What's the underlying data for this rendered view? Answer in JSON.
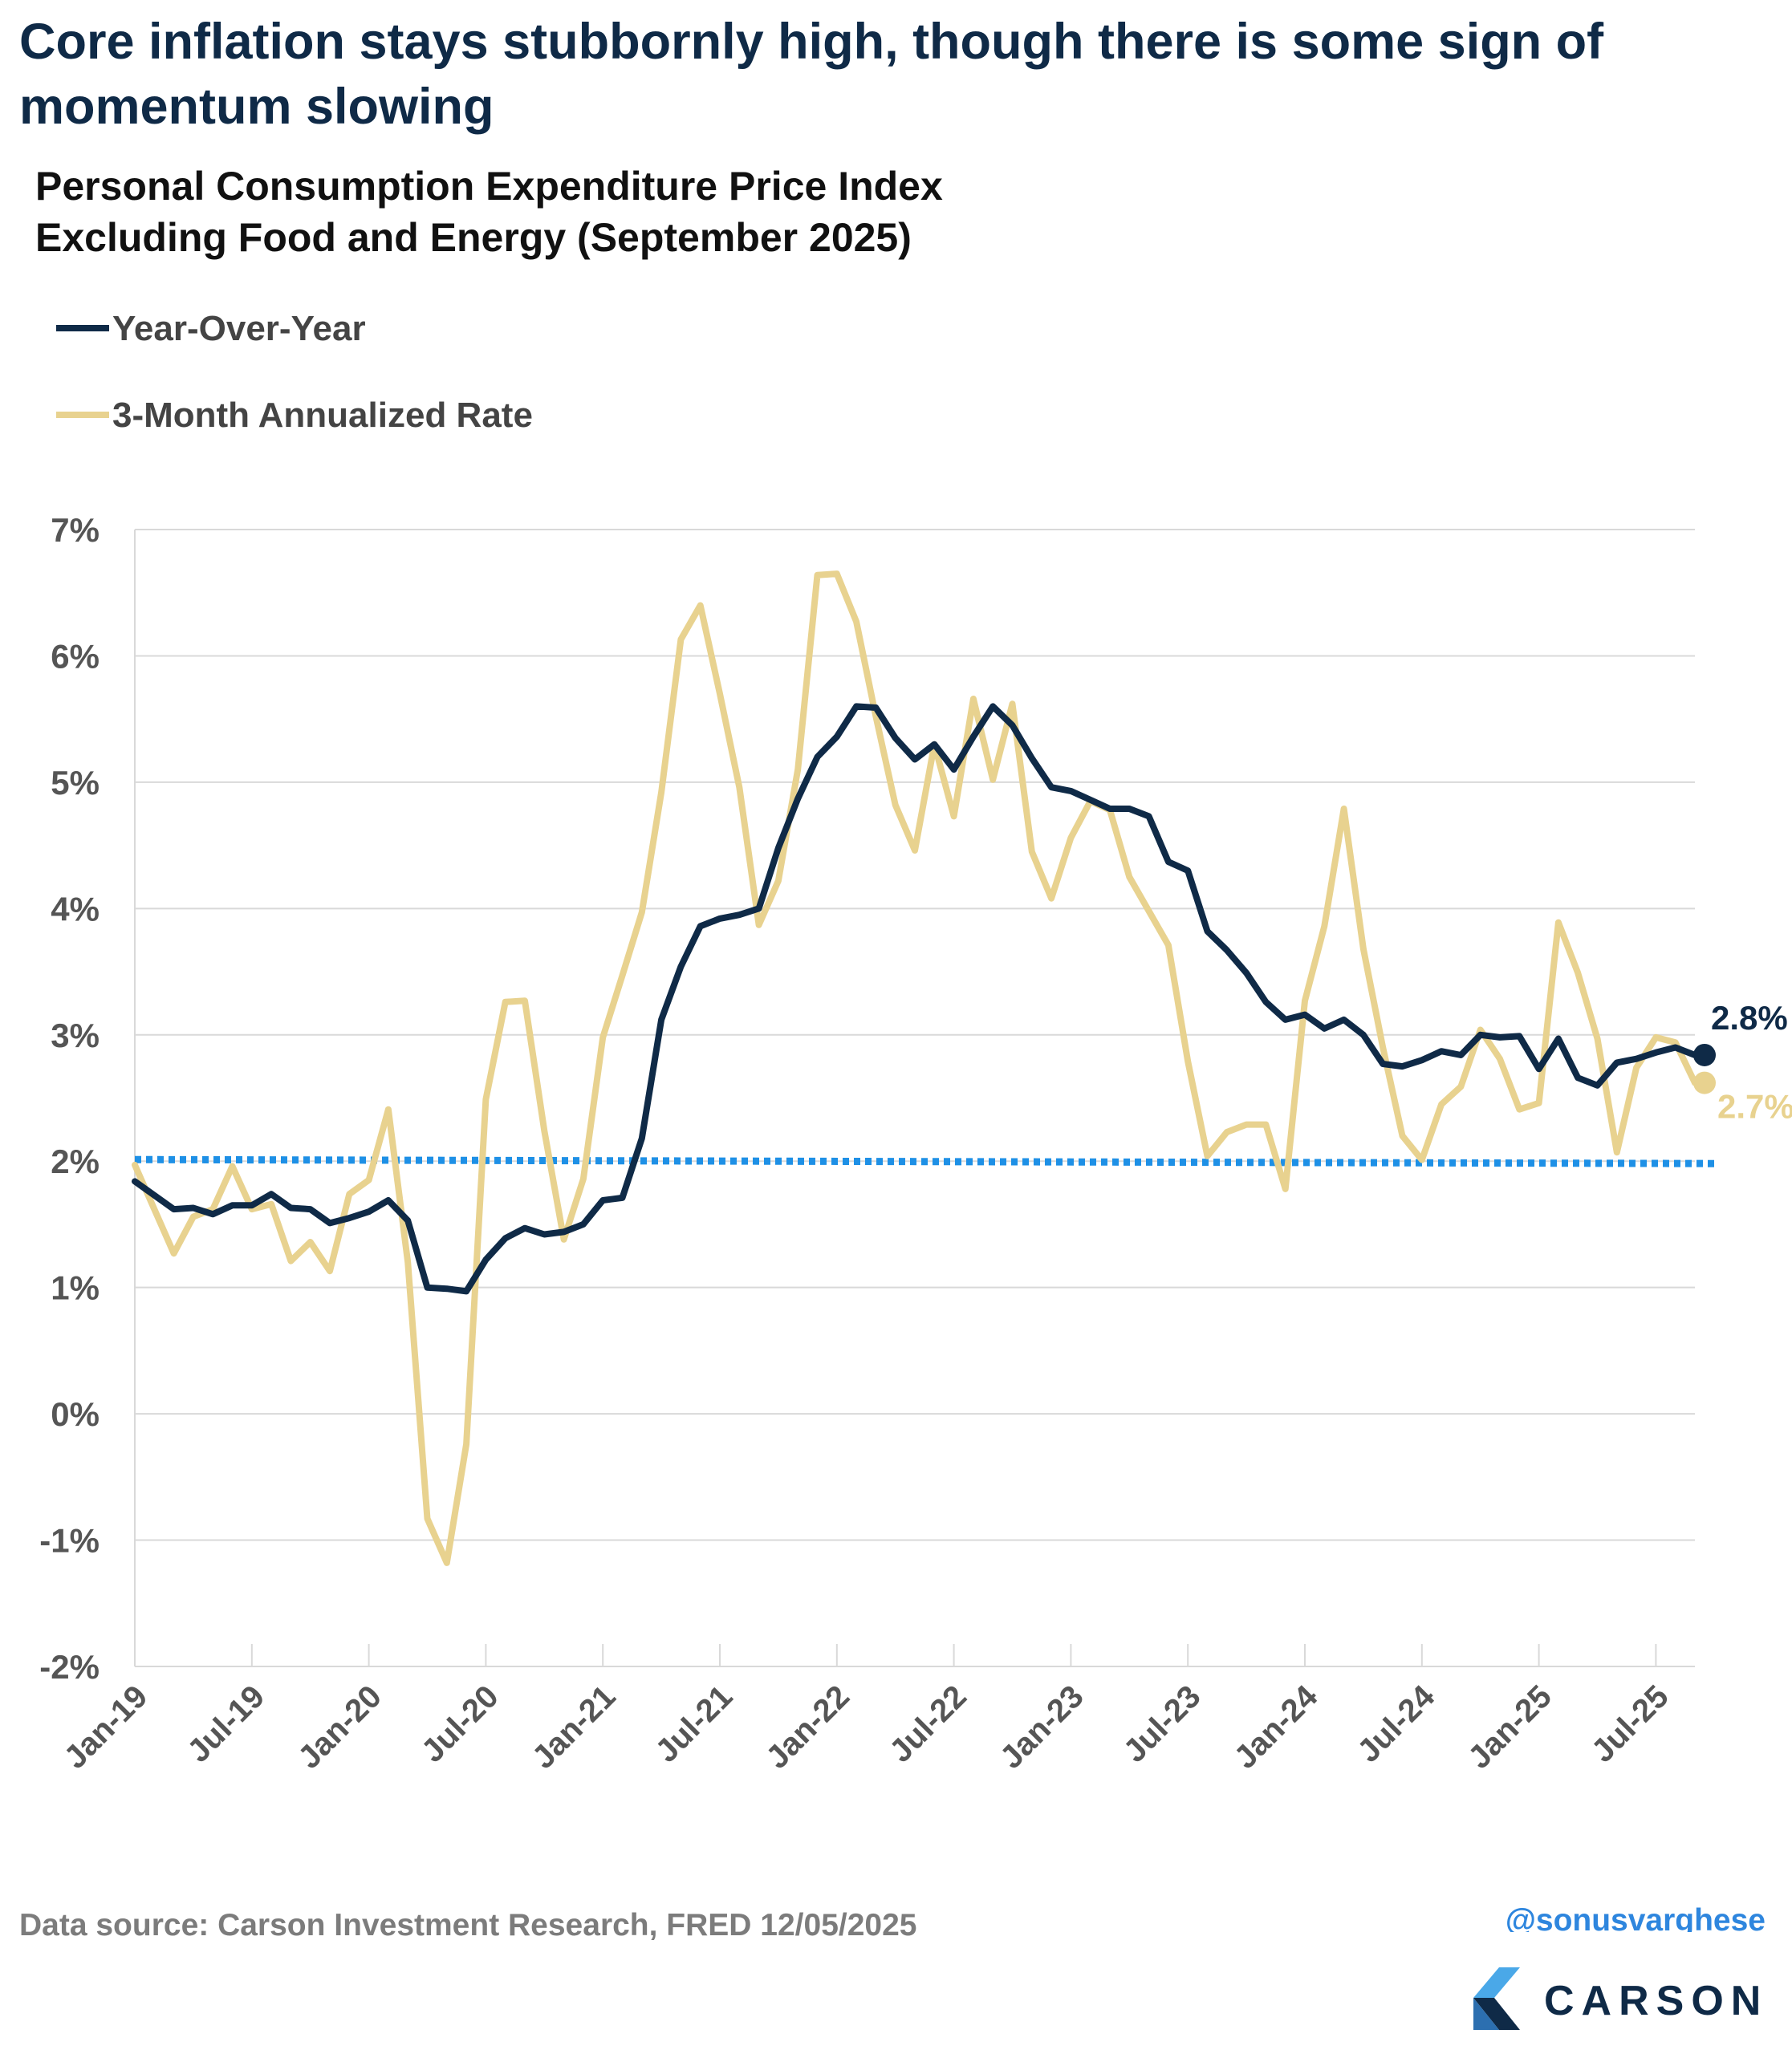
{
  "headline": "Core inflation stays stubbornly high, though there is some sign of momentum slowing",
  "subtitle_lines": [
    "Personal Consumption Expenditure Price Index",
    "Excluding Food and Energy (September 2025)"
  ],
  "footer": {
    "source": "Data source: Carson Investment Research, FRED  12/05/2025",
    "handle": "@sonusvarghese"
  },
  "brand": {
    "name": "CARSON"
  },
  "colors": {
    "yoy": "#0f2a47",
    "three_month": "#e8d28f",
    "target": "#1e90e6",
    "grid": "#d9d9d9",
    "tick_text": "#555555"
  },
  "chart_data": {
    "type": "line",
    "ylim": [
      -2,
      7
    ],
    "yticks": [
      -2,
      -1,
      0,
      1,
      2,
      3,
      4,
      5,
      6,
      7
    ],
    "ytick_labels": [
      "-2%",
      "-1%",
      "0%",
      "1%",
      "2%",
      "3%",
      "4%",
      "5%",
      "6%",
      "7%"
    ],
    "xtick_labels": [
      "Jan-19",
      "Jul-19",
      "Jan-20",
      "Jul-20",
      "Jan-21",
      "Jul-21",
      "Jan-22",
      "Jul-22",
      "Jan-23",
      "Jul-23",
      "Jan-24",
      "Jul-24",
      "Jan-25",
      "Jul-25"
    ],
    "x_start": "Jan-19",
    "x_end": "Sep-25",
    "reference_line": {
      "value": 2.0,
      "style": "dotted"
    },
    "series": [
      {
        "name": "Year-Over-Year",
        "end_label": "2.8%",
        "values": [
          1.84,
          1.73,
          1.62,
          1.63,
          1.58,
          1.65,
          1.65,
          1.74,
          1.63,
          1.62,
          1.51,
          1.55,
          1.6,
          1.69,
          1.53,
          1.0,
          0.99,
          0.97,
          1.22,
          1.39,
          1.47,
          1.42,
          1.44,
          1.5,
          1.69,
          1.71,
          2.18,
          3.12,
          3.54,
          3.86,
          3.92,
          3.95,
          4.0,
          4.48,
          4.87,
          5.2,
          5.36,
          5.6,
          5.59,
          5.35,
          5.18,
          5.3,
          5.1,
          5.36,
          5.6,
          5.45,
          5.19,
          4.96,
          4.93,
          4.86,
          4.79,
          4.79,
          4.73,
          4.37,
          4.3,
          3.82,
          3.67,
          3.49,
          3.26,
          3.12,
          3.16,
          3.05,
          3.12,
          3.0,
          2.77,
          2.75,
          2.8,
          2.87,
          2.84,
          3.0,
          2.98,
          2.99,
          2.73,
          2.97,
          2.66,
          2.6,
          2.78,
          2.81,
          2.86,
          2.9,
          2.84
        ]
      },
      {
        "name": "3-Month Annualized Rate",
        "end_label": "2.7%",
        "values": [
          1.97,
          1.62,
          1.27,
          1.56,
          1.62,
          1.96,
          1.62,
          1.66,
          1.21,
          1.36,
          1.13,
          1.74,
          1.85,
          2.41,
          1.2,
          -0.83,
          -1.18,
          -0.24,
          2.49,
          3.26,
          3.27,
          2.24,
          1.38,
          1.86,
          2.98,
          3.47,
          3.97,
          4.92,
          6.13,
          6.4,
          5.7,
          4.96,
          3.87,
          4.22,
          5.1,
          6.64,
          6.65,
          6.27,
          5.52,
          4.82,
          4.46,
          5.3,
          4.73,
          5.66,
          5.02,
          5.62,
          4.45,
          4.08,
          4.56,
          4.85,
          4.78,
          4.25,
          3.98,
          3.71,
          2.79,
          2.04,
          2.23,
          2.29,
          2.29,
          1.78,
          3.27,
          3.86,
          4.79,
          3.68,
          2.9,
          2.2,
          2.01,
          2.45,
          2.59,
          3.04,
          2.81,
          2.41,
          2.46,
          3.89,
          3.49,
          2.97,
          2.07,
          2.74,
          2.98,
          2.94,
          2.62
        ]
      }
    ]
  }
}
